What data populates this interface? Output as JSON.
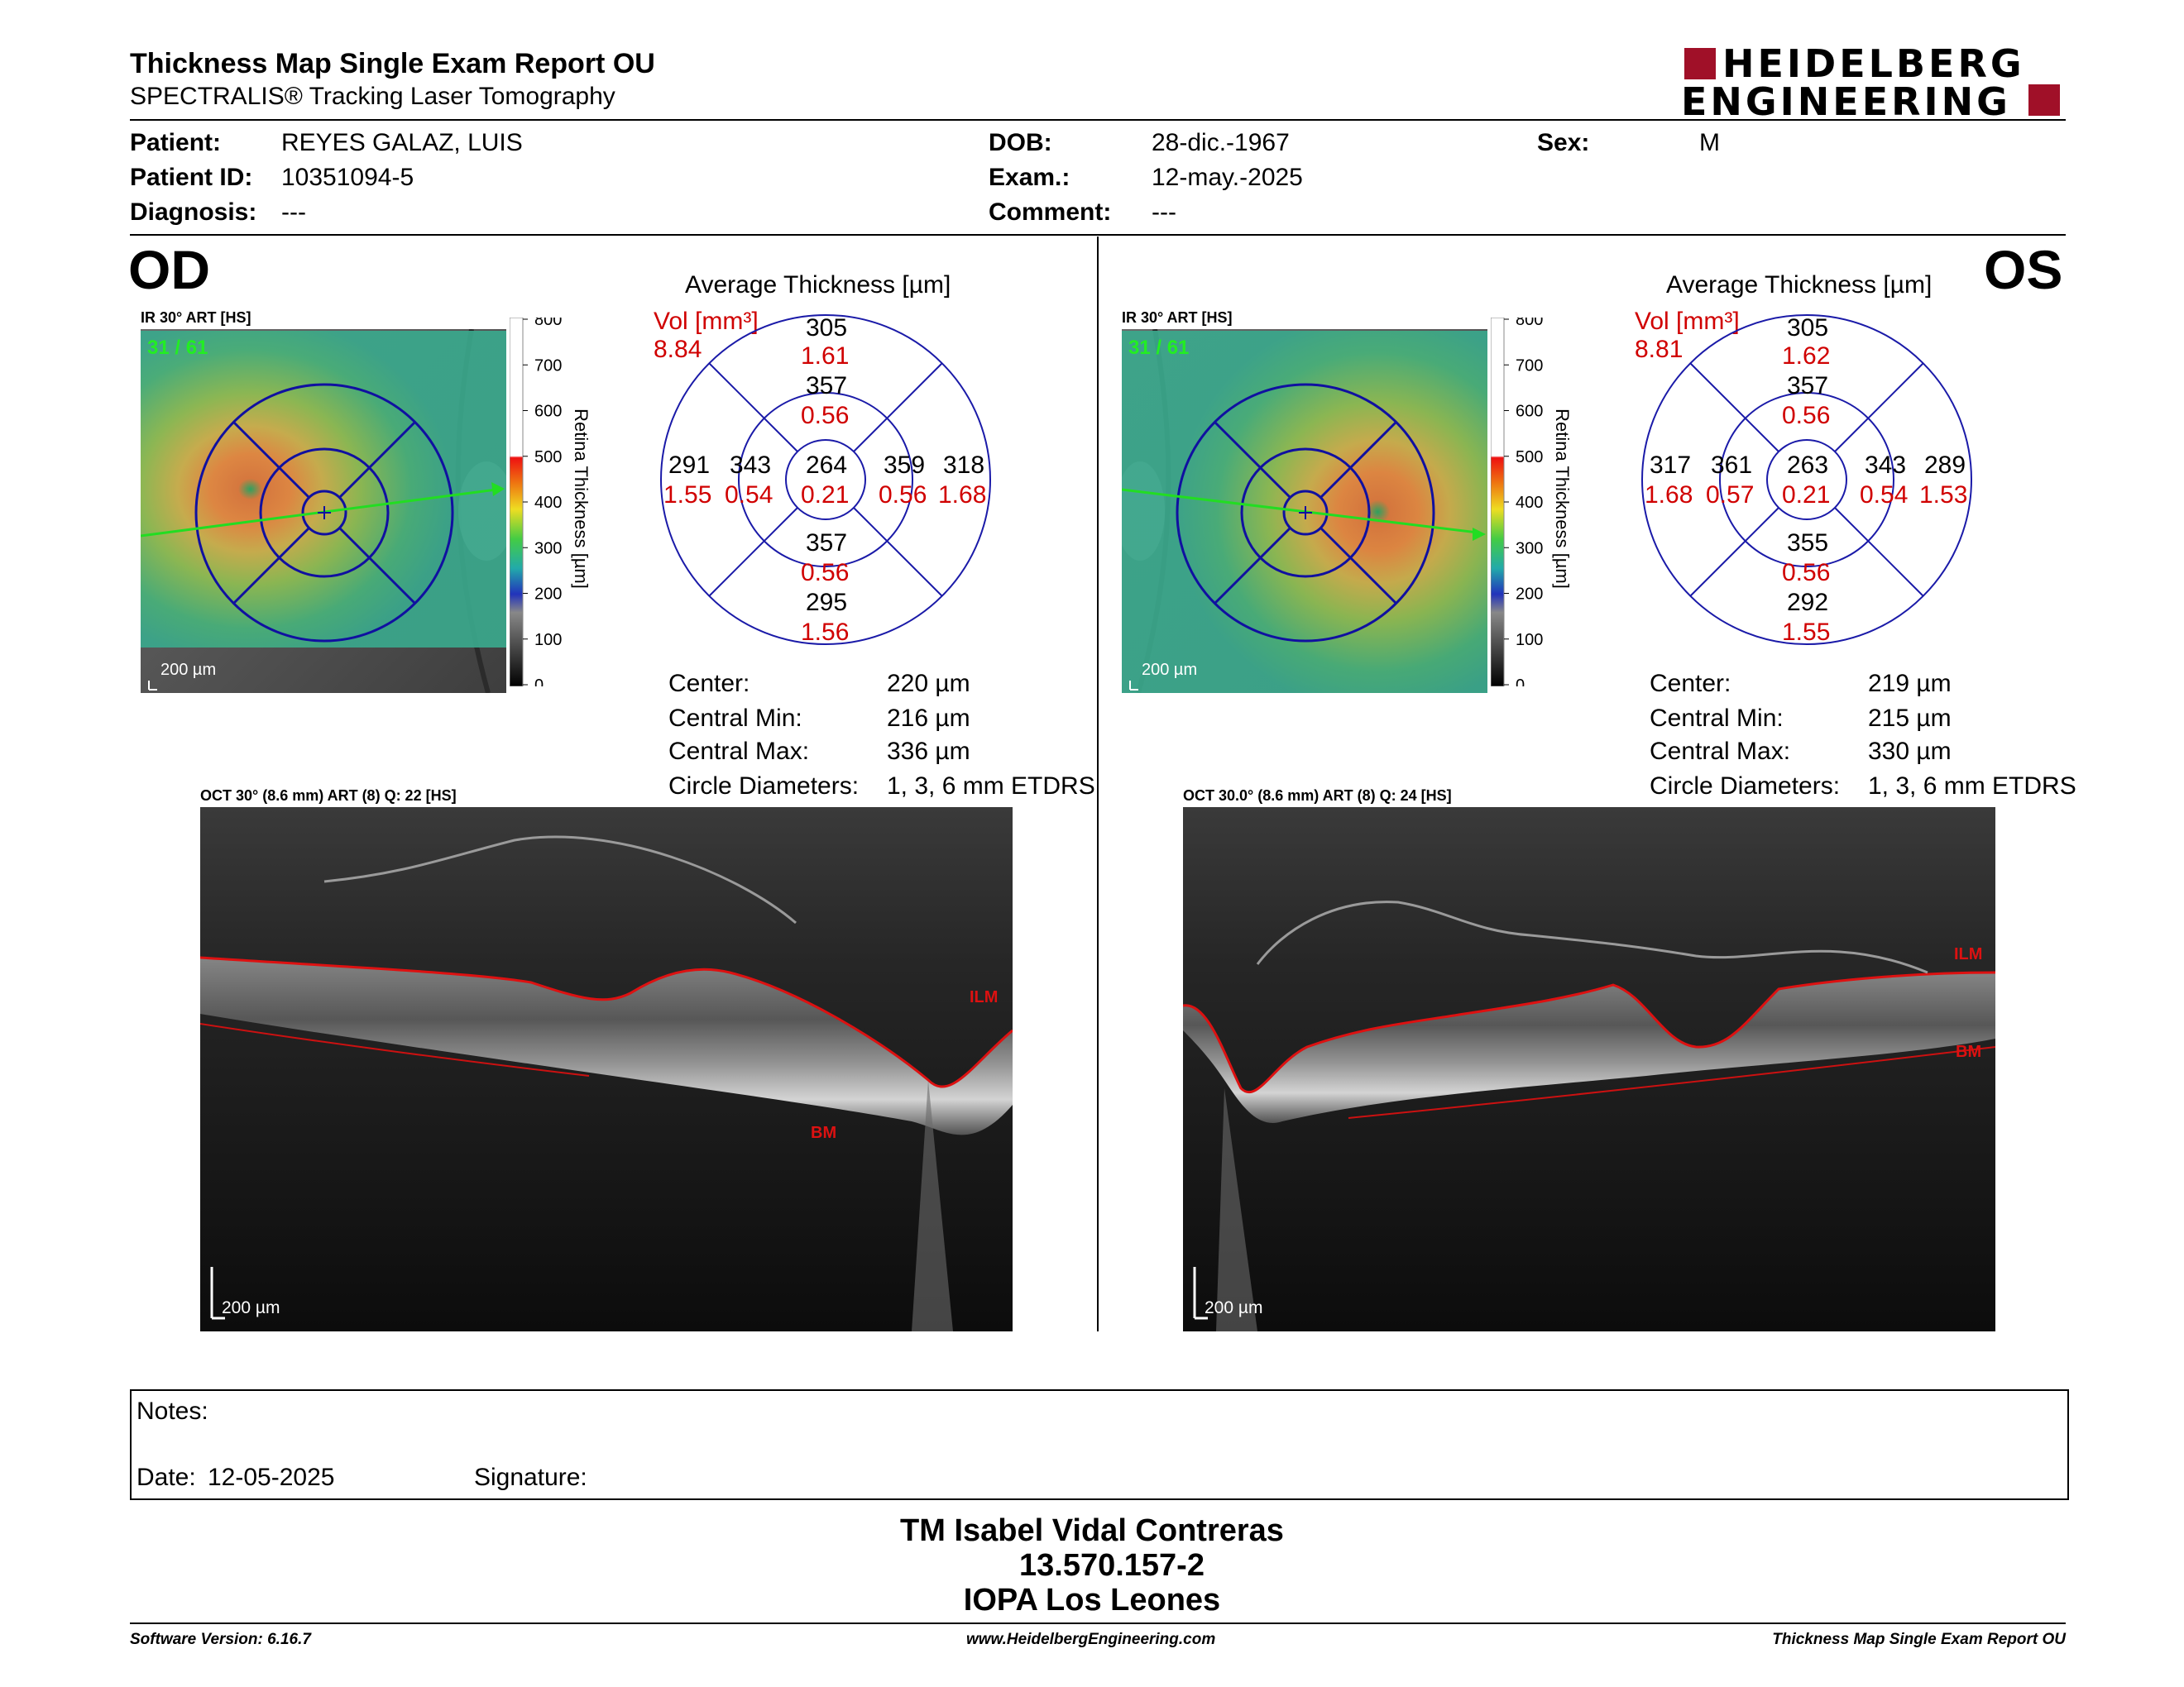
{
  "header": {
    "title": "Thickness Map Single Exam Report OU",
    "subtitle": "SPECTRALIS® Tracking Laser Tomography",
    "logo_line1": "HEIDELBERG",
    "logo_line2": "ENGINEERING",
    "brand_color": "#a01028"
  },
  "patient": {
    "patient_label": "Patient:",
    "patient": "REYES GALAZ, LUIS",
    "id_label": "Patient ID:",
    "id": "10351094-5",
    "diagnosis_label": "Diagnosis:",
    "diagnosis": "---",
    "dob_label": "DOB:",
    "dob": "28-dic.-1967",
    "exam_label": "Exam.:",
    "exam": "12-may.-2025",
    "comment_label": "Comment:",
    "comment": "---",
    "sex_label": "Sex:",
    "sex": "M"
  },
  "od": {
    "eye": "OD",
    "ir_label": "IR 30° ART [HS]",
    "frame": "31 / 61",
    "scale_ir": "200 µm",
    "colorbar_ticks": [
      "800",
      "700",
      "600",
      "500",
      "400",
      "300",
      "200",
      "100",
      "0"
    ],
    "colorbar_title": "Retina  Thickness [µm]",
    "avg_title": "Average Thickness [µm]",
    "vol_label": "Vol [mm³]",
    "vol": "8.84",
    "grid": {
      "center_t": "264",
      "center_v": "0.21",
      "sup_inner_t": "357",
      "sup_inner_v": "0.56",
      "sup_outer_t": "305",
      "sup_outer_v": "1.61",
      "inf_inner_t": "357",
      "inf_inner_v": "0.56",
      "inf_outer_t": "295",
      "inf_outer_v": "1.56",
      "left_inner_t": "343",
      "left_inner_v": "0.54",
      "left_outer_t": "291",
      "left_outer_v": "1.55",
      "right_inner_t": "359",
      "right_inner_v": "0.56",
      "right_outer_t": "318",
      "right_outer_v": "1.68"
    },
    "stats": {
      "center_label": "Center:",
      "center": "220 µm",
      "min_label": "Central Min:",
      "min": "216 µm",
      "max_label": "Central Max:",
      "max": "336 µm",
      "diam_label": "Circle Diameters:",
      "diam": "1, 3, 6 mm ETDRS"
    },
    "oct_label": "OCT 30° (8.6 mm) ART (8) Q: 22 [HS]",
    "ilm": "ILM",
    "bm": "BM",
    "scale_oct": "200 µm"
  },
  "os": {
    "eye": "OS",
    "ir_label": "IR 30° ART [HS]",
    "frame": "31 / 61",
    "scale_ir": "200 µm",
    "colorbar_ticks": [
      "800",
      "700",
      "600",
      "500",
      "400",
      "300",
      "200",
      "100",
      "0"
    ],
    "colorbar_title": "Retina  Thickness [µm]",
    "avg_title": "Average Thickness [µm]",
    "vol_label": "Vol [mm³]",
    "vol": "8.81",
    "grid": {
      "center_t": "263",
      "center_v": "0.21",
      "sup_inner_t": "357",
      "sup_inner_v": "0.56",
      "sup_outer_t": "305",
      "sup_outer_v": "1.62",
      "inf_inner_t": "355",
      "inf_inner_v": "0.56",
      "inf_outer_t": "292",
      "inf_outer_v": "1.55",
      "left_inner_t": "361",
      "left_inner_v": "0.57",
      "left_outer_t": "317",
      "left_outer_v": "1.68",
      "right_inner_t": "343",
      "right_inner_v": "0.54",
      "right_outer_t": "289",
      "right_outer_v": "1.53"
    },
    "stats": {
      "center_label": "Center:",
      "center": "219 µm",
      "min_label": "Central Min:",
      "min": "215 µm",
      "max_label": "Central Max:",
      "max": "330 µm",
      "diam_label": "Circle Diameters:",
      "diam": "1, 3, 6 mm ETDRS"
    },
    "oct_label": "OCT 30.0° (8.6 mm) ART (8) Q: 24 [HS]",
    "ilm": "ILM",
    "bm": "BM",
    "scale_oct": "200 µm"
  },
  "notes": {
    "notes_label": "Notes:",
    "date_label": "Date:",
    "date": "12-05-2025",
    "signature_label": "Signature:"
  },
  "signature": {
    "name": "TM Isabel Vidal Contreras",
    "rut": "13.570.157-2",
    "place": "IOPA Los Leones"
  },
  "footer": {
    "software": "Software Version: 6.16.7",
    "url": "www.HeidelbergEngineering.com",
    "report": "Thickness Map Single Exam Report OU"
  }
}
